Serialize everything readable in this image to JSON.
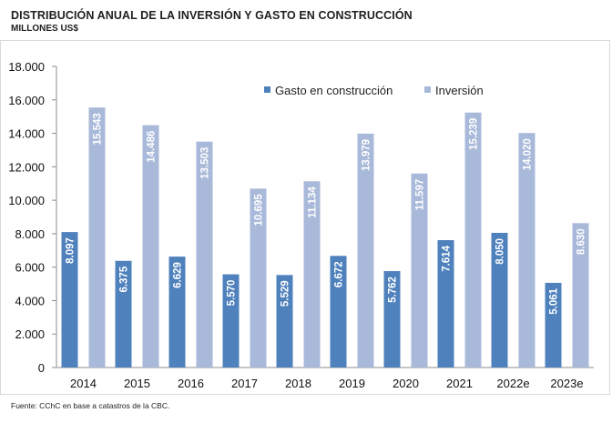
{
  "header": {
    "title": "DISTRIBUCIÓN ANUAL DE LA INVERSIÓN Y GASTO EN CONSTRUCCIÓN",
    "subtitle": "MILLONES US$"
  },
  "footer": {
    "source": "Fuente: CChC en base a catastros de la CBC."
  },
  "chart_data": {
    "type": "bar",
    "title": "DISTRIBUCIÓN ANUAL DE LA INVERSIÓN Y GASTO EN CONSTRUCCIÓN",
    "subtitle": "MILLONES US$",
    "xlabel": "",
    "ylabel": "",
    "ylim": [
      0,
      18000
    ],
    "yticks": [
      0,
      2000,
      4000,
      6000,
      8000,
      10000,
      12000,
      14000,
      16000,
      18000
    ],
    "ytick_labels": [
      "0",
      "2.000",
      "4.000",
      "6.000",
      "8.000",
      "10.000",
      "12.000",
      "14.000",
      "16.000",
      "18.000"
    ],
    "categories": [
      "2014",
      "2015",
      "2016",
      "2017",
      "2018",
      "2019",
      "2020",
      "2021",
      "2022e",
      "2023e"
    ],
    "legend_position": "top-right",
    "grid": false,
    "series": [
      {
        "name": "Gasto en construcción",
        "color": "#4f81bd",
        "values": [
          8097,
          6375,
          6629,
          5570,
          5529,
          6672,
          5762,
          7614,
          8050,
          5061
        ],
        "labels": [
          "8.097",
          "6.375",
          "6.629",
          "5.570",
          "5.529",
          "6.672",
          "5.762",
          "7.614",
          "8.050",
          "5.061"
        ]
      },
      {
        "name": "Inversión",
        "color": "#a9b9d9",
        "values": [
          15543,
          14486,
          13503,
          10695,
          11134,
          13979,
          11597,
          15239,
          14020,
          8630
        ],
        "labels": [
          "15.543",
          "14.486",
          "13.503",
          "10.695",
          "11.134",
          "13.979",
          "11.597",
          "15.239",
          "14.020",
          "8.630"
        ]
      }
    ]
  }
}
